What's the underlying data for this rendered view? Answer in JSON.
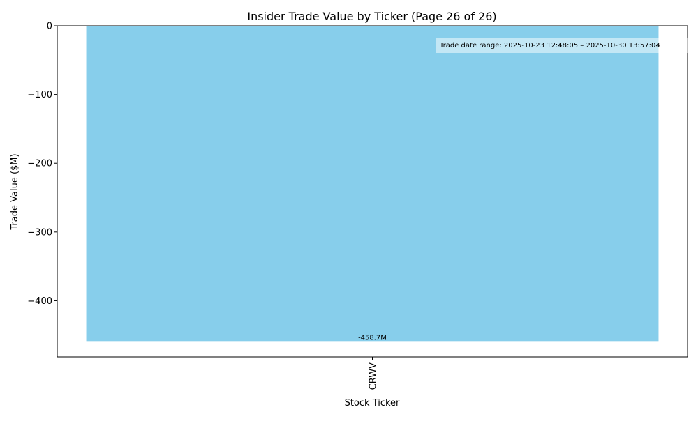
{
  "chart_data": {
    "type": "bar",
    "title": "Insider Trade Value by Ticker (Page 26 of 26)",
    "xlabel": "Stock Ticker",
    "ylabel": "Trade Value ($M)",
    "categories": [
      "CRWV"
    ],
    "values": [
      -458.7
    ],
    "data_labels": [
      "-458.7M"
    ],
    "ylim": [
      -481.7,
      0
    ],
    "yticks": [
      0,
      -100,
      -200,
      -300,
      -400
    ],
    "ytick_labels": [
      "0",
      "−100",
      "−200",
      "−300",
      "−400"
    ],
    "grid": false,
    "bar_color": "#87ceeb",
    "annotation": "Trade date range: 2025-10-23 12:48:05 – 2025-10-30 13:57:04",
    "annotation_placement": "top-right"
  }
}
